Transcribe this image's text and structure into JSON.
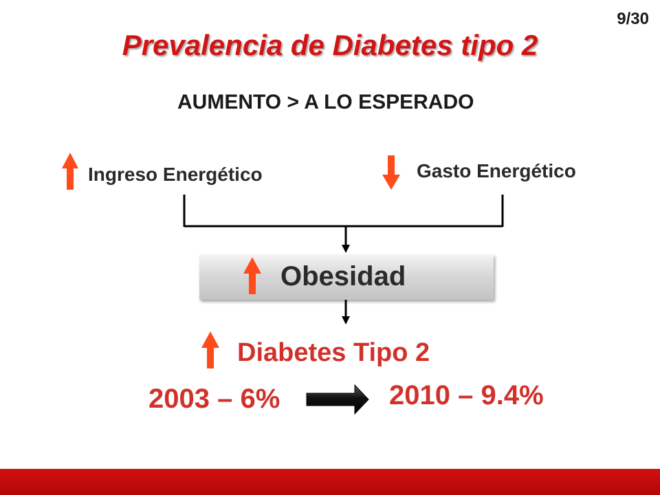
{
  "slide": {
    "page_number": "9/30",
    "title": "Prevalencia de Diabetes tipo 2",
    "subtitle": "AUMENTO > A LO ESPERADO"
  },
  "diagram": {
    "ingreso_label": "Ingreso Energético",
    "gasto_label": "Gasto Energético",
    "obesidad_label": "Obesidad",
    "diabetes_label": "Diabetes Tipo 2",
    "prevalence_start": "2003 – 6%",
    "prevalence_end": "2010 – 9.4%"
  },
  "colors": {
    "title_red": "#d21414",
    "arrow_orange_red": "#ff4a1c",
    "value_red": "#d2312b",
    "bar_red": "#c00a0a"
  },
  "icons": {
    "up": "arrow-up-icon",
    "down": "arrow-down-icon",
    "right": "arrow-right-icon"
  }
}
